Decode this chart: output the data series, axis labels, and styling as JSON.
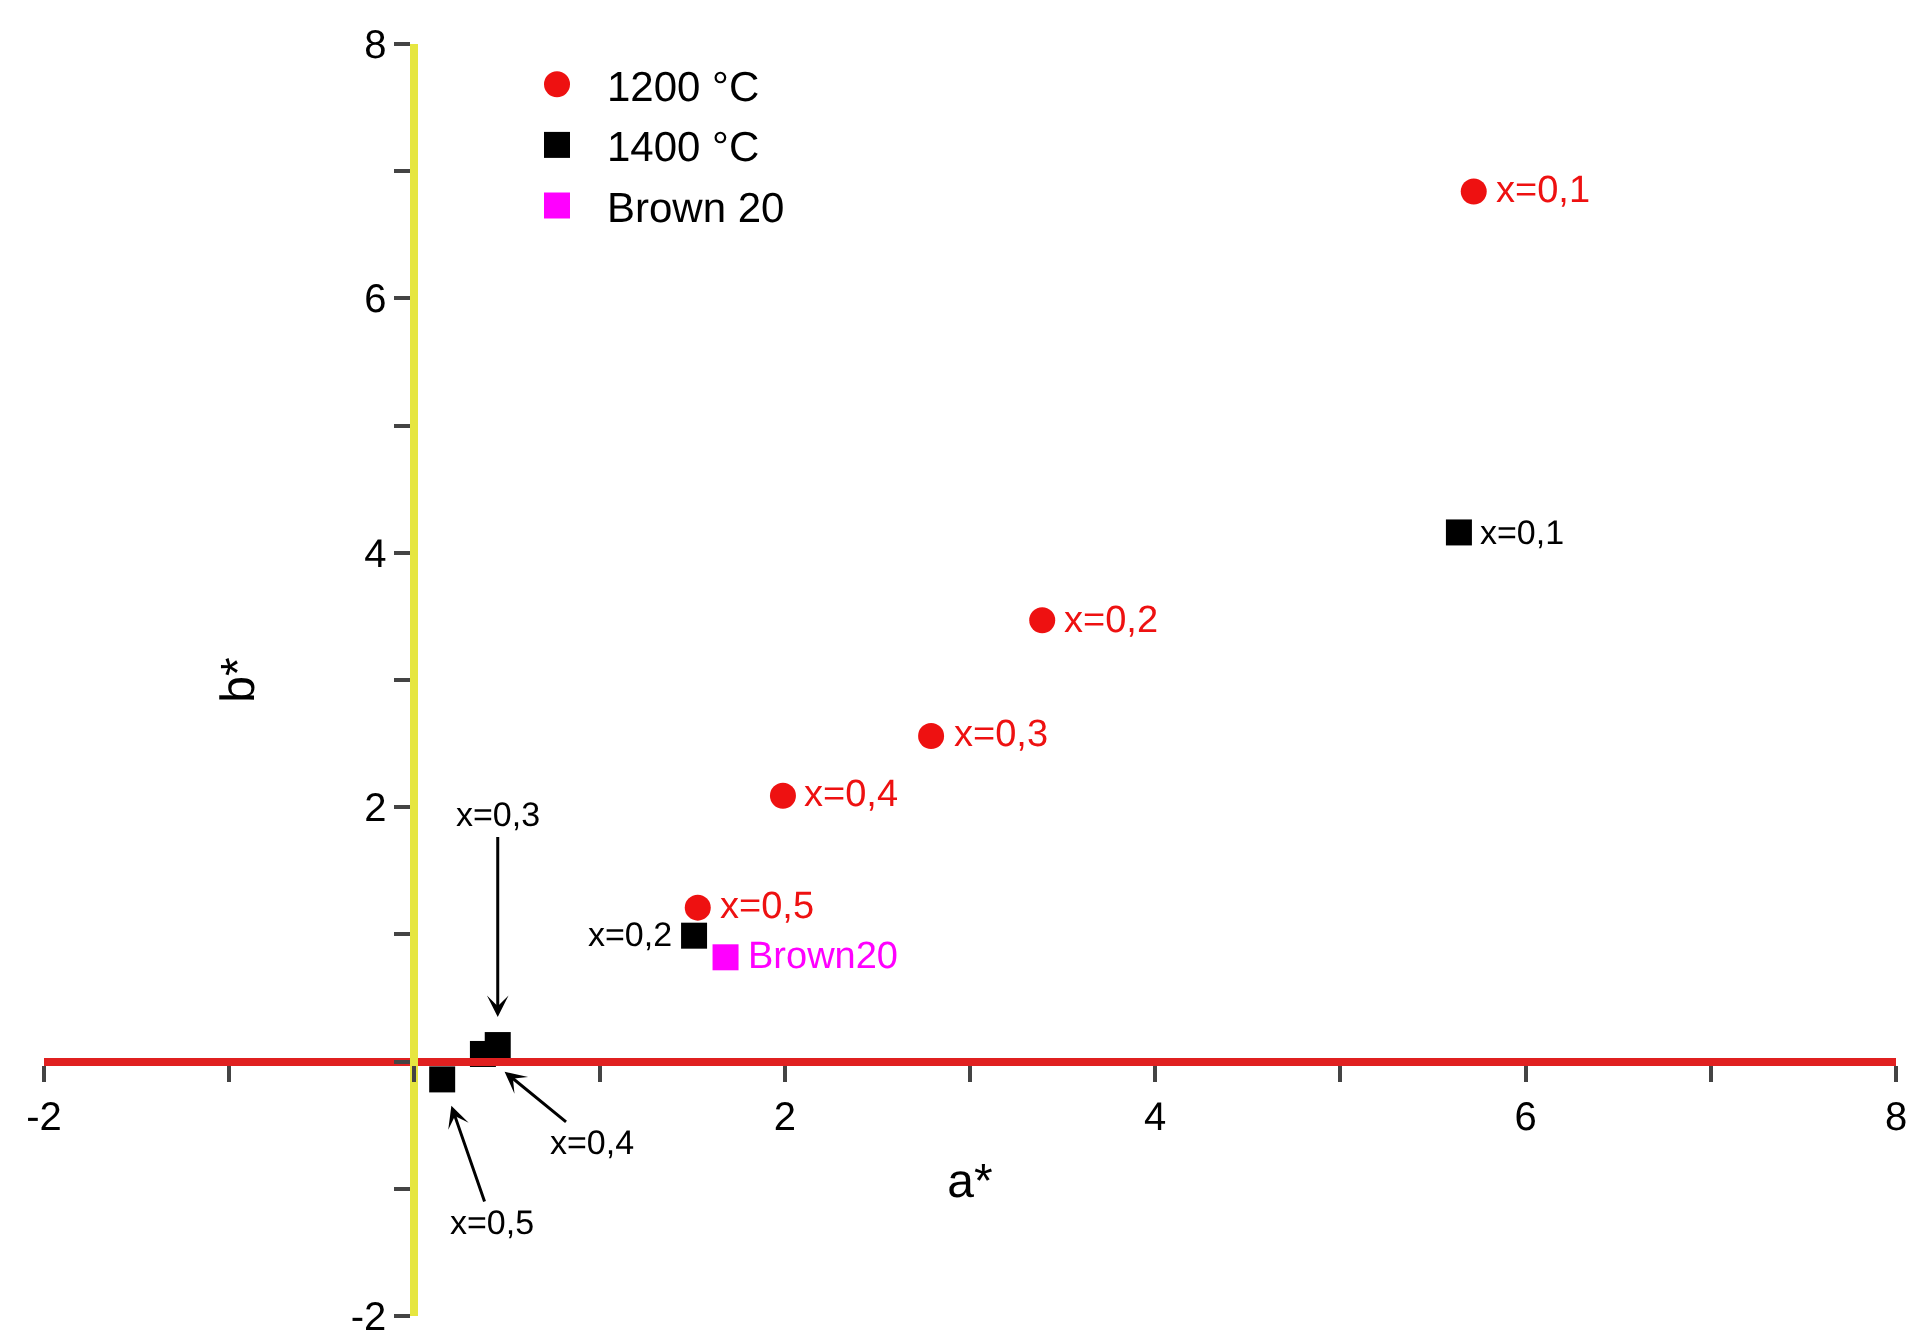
{
  "chart_data": {
    "type": "scatter",
    "xlabel": "a*",
    "ylabel": "b*",
    "xlim": [
      -2,
      8
    ],
    "ylim": [
      -2,
      8
    ],
    "xticks": [
      -2,
      {
        "value": -1,
        "label": null
      },
      {
        "value": 0,
        "label": null
      },
      {
        "value": 1,
        "label": null
      },
      2,
      {
        "value": 3,
        "label": null
      },
      4,
      {
        "value": 5,
        "label": null
      },
      6,
      {
        "value": 7,
        "label": null
      },
      8
    ],
    "yticks": [
      -2,
      {
        "value": -1,
        "label": null
      },
      {
        "value": 0,
        "label": null
      },
      {
        "value": 1,
        "label": null
      },
      2,
      {
        "value": 3,
        "label": null
      },
      4,
      {
        "value": 5,
        "label": null
      },
      6,
      {
        "value": 7,
        "label": null
      },
      8
    ],
    "grid": false,
    "legend": "top left",
    "series": [
      {
        "name": "1200 °C",
        "color": "#ee1111",
        "marker": "circle",
        "x": [
          5.72,
          3.39,
          2.79,
          1.99,
          1.53
        ],
        "values": [
          6.84,
          3.47,
          2.56,
          2.09,
          1.21
        ]
      },
      {
        "name": "1400 °C",
        "color": "#000000",
        "marker": "square",
        "x": [
          5.64,
          1.51,
          0.45,
          0.37,
          0.15
        ],
        "values": [
          4.16,
          0.99,
          0.13,
          0.06,
          -0.14
        ]
      },
      {
        "name": "Brown 20",
        "color": "#ff00ff",
        "marker": "square",
        "x": [
          1.68
        ],
        "values": [
          0.82
        ]
      }
    ],
    "annotations": [
      {
        "text": "x=0,1",
        "x": 5.72,
        "y": 6.84
      },
      {
        "text": "x=0,2",
        "x": 3.39,
        "y": 3.47
      },
      {
        "text": "x=0,3",
        "x": 2.79,
        "y": 2.56
      },
      {
        "text": "x=0,4",
        "x": 1.99,
        "y": 2.09
      },
      {
        "text": "x=0,5",
        "x": 1.53,
        "y": 1.21
      },
      {
        "text": "x=0,1",
        "x": 5.64,
        "y": 4.16
      },
      {
        "text": "x=0,2",
        "x": 1.51,
        "y": 0.99
      },
      {
        "text": "Brown20",
        "x": 1.68,
        "y": 0.82
      },
      {
        "text": "x=0,3",
        "x": 0.45,
        "y": 0.13
      },
      {
        "text": "x=0,4",
        "x": 0.37,
        "y": 0.06
      },
      {
        "text": "x=0,5",
        "x": 0.15,
        "y": -0.14
      }
    ]
  }
}
